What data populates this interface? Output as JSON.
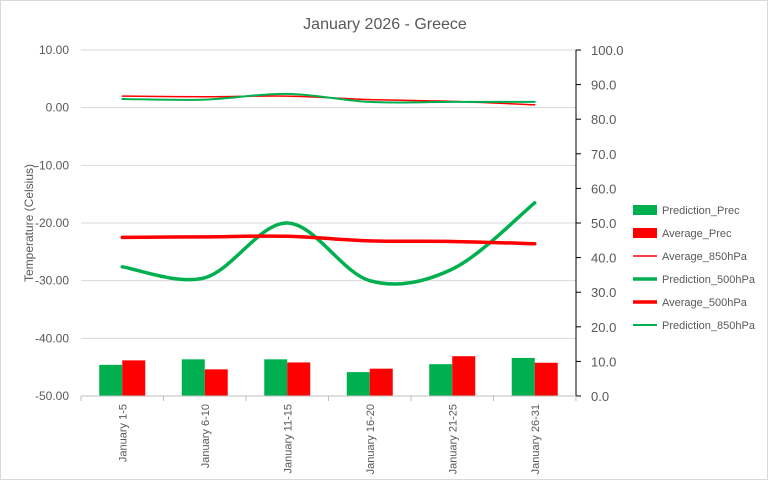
{
  "chart_data": {
    "type": "bar",
    "title": "January 2026 - Greece",
    "xlabel": "",
    "ylabel": "Temperature (Celsius)",
    "y2label": "",
    "categories": [
      "January 1-5",
      "January 6-10",
      "January 11-15",
      "January 16-20",
      "January 21-25",
      "January 26-31"
    ],
    "ylim": [
      -50,
      10
    ],
    "y2lim": [
      0,
      100
    ],
    "y_ticks": [
      "10.00",
      "0.00",
      "-10.00",
      "-20.00",
      "-30.00",
      "-40.00",
      "-50.00"
    ],
    "y2_ticks": [
      "100.0",
      "90.0",
      "80.0",
      "70.0",
      "60.0",
      "50.0",
      "40.0",
      "30.0",
      "20.0",
      "10.0",
      "0.0"
    ],
    "grid": true,
    "legend_position": "right",
    "bar_series": [
      {
        "name": "Prediction_Prec",
        "color": "#00b050",
        "axis": "right",
        "values": [
          9.0,
          10.6,
          10.6,
          6.9,
          9.2,
          11.0
        ]
      },
      {
        "name": "Average_Prec",
        "color": "#ff0000",
        "axis": "right",
        "values": [
          10.3,
          7.7,
          9.7,
          7.9,
          11.5,
          9.6
        ]
      }
    ],
    "line_series": [
      {
        "name": "Average_850hPa",
        "color": "#ff0000",
        "width": 1.5,
        "axis": "left",
        "values": [
          2.0,
          1.9,
          2.0,
          1.4,
          1.1,
          0.5
        ]
      },
      {
        "name": "Prediction_500hPa",
        "color": "#00b050",
        "width": 3.5,
        "axis": "left",
        "values": [
          -27.6,
          -29.5,
          -20.0,
          -30.0,
          -28.0,
          -16.5
        ]
      },
      {
        "name": "Average_500hPa",
        "color": "#ff0000",
        "width": 3.5,
        "axis": "left",
        "values": [
          -22.5,
          -22.4,
          -22.3,
          -23.1,
          -23.2,
          -23.6
        ]
      },
      {
        "name": "Prediction_850hPa",
        "color": "#00b050",
        "width": 2,
        "axis": "left",
        "values": [
          1.5,
          1.4,
          2.4,
          1.0,
          1.0,
          1.0
        ]
      }
    ],
    "legend_order": [
      {
        "name": "Prediction_Prec",
        "kind": "bar",
        "color": "#00b050"
      },
      {
        "name": "Average_Prec",
        "kind": "bar",
        "color": "#ff0000"
      },
      {
        "name": "Average_850hPa",
        "kind": "line",
        "color": "#ff0000",
        "width": 1.5
      },
      {
        "name": "Prediction_500hPa",
        "kind": "line",
        "color": "#00b050",
        "width": 3.5
      },
      {
        "name": "Average_500hPa",
        "kind": "line",
        "color": "#ff0000",
        "width": 3.5
      },
      {
        "name": "Prediction_850hPa",
        "kind": "line",
        "color": "#00b050",
        "width": 2
      }
    ]
  }
}
